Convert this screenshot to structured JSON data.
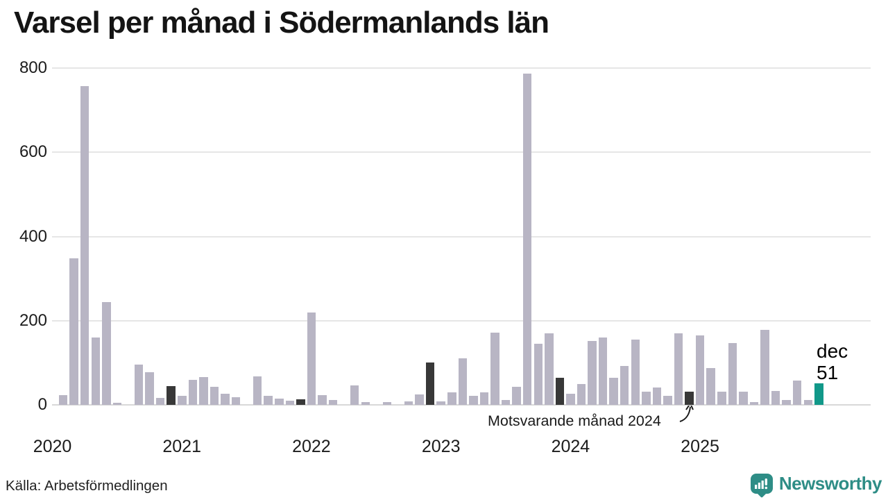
{
  "title": "Varsel per månad i Södermanlands län",
  "source": "Källa: Arbetsförmedlingen",
  "logo_text": "Newsworthy",
  "colors": {
    "bar": "#b8b5c4",
    "comparison_bar": "#383838",
    "current_bar": "#119889",
    "brand_teal": "#2e8d86",
    "gridline": "#e6e6e6",
    "axis_line": "#d8d8d8"
  },
  "chart_data": {
    "type": "bar",
    "title": "Varsel per månad i Södermanlands län",
    "x_unit": "month",
    "x_start": "2020-01",
    "x_end": "2025-12",
    "values": [
      0,
      24,
      348,
      757,
      160,
      245,
      5,
      0,
      95,
      78,
      17,
      45,
      22,
      60,
      66,
      43,
      27,
      18,
      0,
      68,
      22,
      15,
      10,
      13,
      220,
      24,
      11,
      0,
      46,
      7,
      0,
      7,
      0,
      9,
      25,
      100,
      9,
      30,
      110,
      21,
      30,
      172,
      11,
      43,
      787,
      145,
      170,
      64,
      26,
      50,
      152,
      160,
      64,
      93,
      155,
      32,
      42,
      22,
      170,
      32,
      165,
      87,
      32,
      147,
      32,
      6,
      178,
      33,
      11,
      58,
      11,
      51
    ],
    "year_labels": [
      "2020",
      "2021",
      "2022",
      "2023",
      "2024",
      "2025"
    ],
    "yticks": [
      0,
      200,
      400,
      600,
      800
    ],
    "ylim": [
      0,
      800
    ],
    "grid": true,
    "legend": "none",
    "comparison_month_indices": [
      11,
      23,
      35,
      47,
      59
    ],
    "current_month_index": 71,
    "current_month_label": {
      "month": "dec",
      "value": "51"
    },
    "annotation_text": "Motsvarande månad 2024"
  }
}
